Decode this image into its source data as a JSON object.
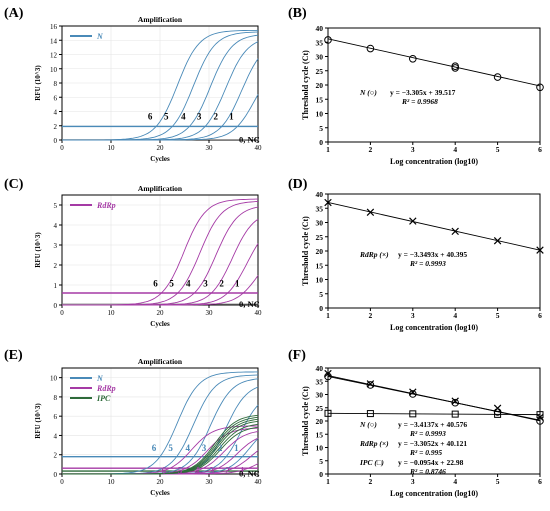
{
  "colors": {
    "N": "#4a8ab8",
    "RdRp": "#a53aa5",
    "IPC": "#2e6b3a",
    "threshold": "#1f5a9a",
    "regression": "#000000"
  },
  "chart_data": [
    {
      "panel": "(A)",
      "type": "line",
      "title": "Amplification",
      "xlabel": "Cycles",
      "ylabel": "RFU (10^3)",
      "xlim": [
        0,
        40
      ],
      "ylim": [
        0,
        16
      ],
      "xticks": [
        "0",
        "10",
        "20",
        "30",
        "40"
      ],
      "yticks": [
        "0",
        "2",
        "4",
        "6",
        "8",
        "10",
        "12",
        "14",
        "16"
      ],
      "legend": [
        "N"
      ],
      "threshold": 1.9,
      "curve_labels": [
        "6",
        "5",
        "4",
        "3",
        "2",
        "1"
      ],
      "nc_label": "0, NC",
      "series": [
        {
          "name": "N",
          "ct": 19.2,
          "plateau": 15.4
        },
        {
          "name": "N",
          "ct": 22.5,
          "plateau": 15.2
        },
        {
          "name": "N",
          "ct": 26.0,
          "plateau": 14.9
        },
        {
          "name": "N",
          "ct": 29.2,
          "plateau": 14.5
        },
        {
          "name": "N",
          "ct": 32.6,
          "plateau": 14.0
        },
        {
          "name": "N",
          "ct": 35.8,
          "plateau": 11.0
        }
      ]
    },
    {
      "panel": "(B)",
      "type": "scatter",
      "xlabel": "Log concentration (log10)",
      "ylabel": "Threshold cycle (Ct)",
      "xlim": [
        1,
        6
      ],
      "ylim": [
        0,
        40
      ],
      "xticks": [
        "1",
        "2",
        "3",
        "4",
        "5",
        "6"
      ],
      "yticks": [
        "0",
        "5",
        "10",
        "15",
        "20",
        "25",
        "30",
        "35",
        "40"
      ],
      "series": [
        {
          "name": "N",
          "marker": "circle",
          "x": [
            1,
            2,
            3,
            4,
            4,
            5,
            6
          ],
          "y": [
            35.8,
            32.8,
            29.2,
            26.6,
            26.0,
            22.8,
            19.2
          ],
          "slope": -3.305,
          "intercept": 39.517
        }
      ],
      "equations": [
        {
          "label": "N (○)",
          "equation": "y = −3.305x + 39.517",
          "r2": "R² = 0.9968"
        }
      ]
    },
    {
      "panel": "(C)",
      "type": "line",
      "title": "Amplification",
      "xlabel": "Cycles",
      "ylabel": "RFU (10^3)",
      "xlim": [
        0,
        40
      ],
      "ylim": [
        0,
        5.5
      ],
      "xticks": [
        "0",
        "10",
        "20",
        "30",
        "40"
      ],
      "yticks": [
        "0",
        "1",
        "2",
        "3",
        "4",
        "5"
      ],
      "legend": [
        "RdRp"
      ],
      "threshold": 0.6,
      "curve_labels": [
        "6",
        "5",
        "4",
        "3",
        "2",
        "1"
      ],
      "nc_label": "0, NC",
      "series": [
        {
          "name": "RdRp",
          "ct": 20.3,
          "plateau": 5.3
        },
        {
          "name": "RdRp",
          "ct": 23.6,
          "plateau": 5.2
        },
        {
          "name": "RdRp",
          "ct": 27.0,
          "plateau": 5.0
        },
        {
          "name": "RdRp",
          "ct": 30.5,
          "plateau": 4.7
        },
        {
          "name": "RdRp",
          "ct": 33.8,
          "plateau": 4.2
        },
        {
          "name": "RdRp",
          "ct": 37.0,
          "plateau": 3.0
        }
      ]
    },
    {
      "panel": "(D)",
      "type": "scatter",
      "xlabel": "Log concentration (log10)",
      "ylabel": "Threshold cycle (Ct)",
      "xlim": [
        1,
        6
      ],
      "ylim": [
        0,
        40
      ],
      "xticks": [
        "1",
        "2",
        "3",
        "4",
        "5",
        "6"
      ],
      "yticks": [
        "0",
        "5",
        "10",
        "15",
        "20",
        "25",
        "30",
        "35",
        "40"
      ],
      "series": [
        {
          "name": "RdRp",
          "marker": "x",
          "x": [
            1,
            2,
            3,
            4,
            5,
            6
          ],
          "y": [
            37.0,
            33.6,
            30.5,
            26.9,
            23.6,
            20.3
          ],
          "slope": -3.3493,
          "intercept": 40.395
        }
      ],
      "equations": [
        {
          "label": "RdRp (×)",
          "equation": "y = −3.3493x + 40.395",
          "r2": "R² = 0.9993"
        }
      ]
    },
    {
      "panel": "(E)",
      "type": "line",
      "title": "Amplification",
      "xlabel": "Cycles",
      "ylabel": "RFU (10^3)",
      "xlim": [
        0,
        40
      ],
      "ylim": [
        0,
        11
      ],
      "xticks": [
        "0",
        "10",
        "20",
        "30",
        "40"
      ],
      "yticks": [
        "0",
        "2",
        "4",
        "6",
        "8",
        "10"
      ],
      "legend": [
        "N",
        "RdRp",
        "IPC"
      ],
      "thresholds": {
        "N": 1.8,
        "RdRp": 0.6,
        "IPC": 0.3
      },
      "curve_labels_N": [
        "6",
        "5",
        "4",
        "3",
        "2",
        "1"
      ],
      "curve_labels_RdRp": [
        "6",
        "5",
        "4",
        "3",
        "2",
        "1"
      ],
      "nc_label": "0, NC",
      "series": [
        {
          "name": "N",
          "ct": 20.0,
          "plateau": 10.6
        },
        {
          "name": "N",
          "ct": 23.4,
          "plateau": 10.3
        },
        {
          "name": "N",
          "ct": 26.9,
          "plateau": 10.0
        },
        {
          "name": "N",
          "ct": 30.2,
          "plateau": 9.5
        },
        {
          "name": "N",
          "ct": 33.5,
          "plateau": 8.6
        },
        {
          "name": "N",
          "ct": 36.8,
          "plateau": 5.5
        },
        {
          "name": "RdRp",
          "ct": 22.0,
          "plateau": 5.0
        },
        {
          "name": "RdRp",
          "ct": 25.3,
          "plateau": 4.8
        },
        {
          "name": "RdRp",
          "ct": 28.8,
          "plateau": 4.6
        },
        {
          "name": "RdRp",
          "ct": 31.8,
          "plateau": 4.3
        },
        {
          "name": "RdRp",
          "ct": 35.0,
          "plateau": 3.8
        },
        {
          "name": "RdRp",
          "ct": 38.0,
          "plateau": 2.3
        },
        {
          "name": "IPC",
          "ct": 24.5,
          "plateau": 6.2
        },
        {
          "name": "IPC",
          "ct": 24.8,
          "plateau": 6.0
        },
        {
          "name": "IPC",
          "ct": 25.1,
          "plateau": 5.8
        },
        {
          "name": "IPC",
          "ct": 25.4,
          "plateau": 5.6
        },
        {
          "name": "IPC",
          "ct": 25.8,
          "plateau": 5.3
        },
        {
          "name": "IPC",
          "ct": 26.2,
          "plateau": 5.0
        }
      ]
    },
    {
      "panel": "(F)",
      "type": "scatter",
      "xlabel": "Log concentration (log10)",
      "ylabel": "Threshold cycle (Ct)",
      "xlim": [
        1,
        6
      ],
      "ylim": [
        0,
        40
      ],
      "xticks": [
        "1",
        "2",
        "3",
        "4",
        "5",
        "6"
      ],
      "yticks": [
        "0",
        "5",
        "10",
        "15",
        "20",
        "25",
        "30",
        "35",
        "40"
      ],
      "series": [
        {
          "name": "N",
          "marker": "circle",
          "x": [
            1,
            2,
            3,
            4,
            5,
            6
          ],
          "y": [
            36.8,
            33.6,
            30.2,
            26.9,
            23.4,
            20.0
          ],
          "slope": -3.4137,
          "intercept": 40.576
        },
        {
          "name": "RdRp",
          "marker": "x",
          "x": [
            1,
            2,
            3,
            4,
            5,
            6
          ],
          "y": [
            37.9,
            34.0,
            30.9,
            27.5,
            24.8,
            21.4
          ],
          "slope": -3.3052,
          "intercept": 40.121
        },
        {
          "name": "IPC",
          "marker": "square",
          "x": [
            1,
            2,
            3,
            4,
            5,
            6
          ],
          "y": [
            22.9,
            22.8,
            22.7,
            22.6,
            22.5,
            22.4
          ],
          "slope": -0.0954,
          "intercept": 22.98
        }
      ],
      "equations": [
        {
          "label": "N (○)",
          "equation": "y = −3.4137x + 40.576",
          "r2": "R² = 0.9993"
        },
        {
          "label": "RdRp (×)",
          "equation": "y = −3.3052x + 40.121",
          "r2": "R² = 0.995"
        },
        {
          "label": "IPC (□)",
          "equation": "y = −0.0954x + 22.98",
          "r2": "R² = 0.8746"
        }
      ]
    }
  ]
}
